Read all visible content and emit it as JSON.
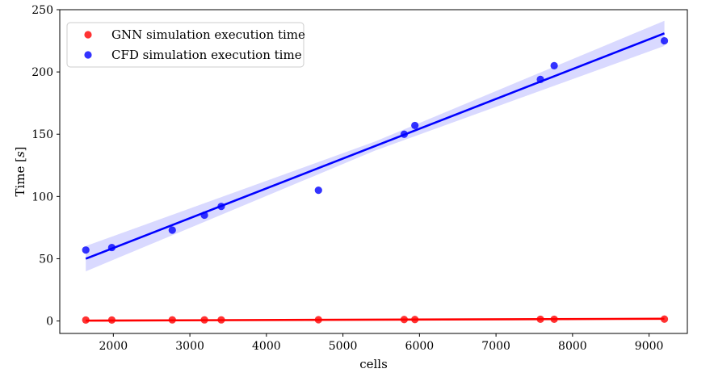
{
  "chart_data": {
    "type": "scatter",
    "xlabel": "cells",
    "ylabel": "Time [s]",
    "xlim": [
      1300,
      9500
    ],
    "ylim": [
      -10,
      250
    ],
    "xticks": [
      2000,
      3000,
      4000,
      5000,
      6000,
      7000,
      8000,
      9000
    ],
    "yticks": [
      0,
      50,
      100,
      150,
      200,
      250
    ],
    "grid": false,
    "legend_position": "top-left",
    "series": [
      {
        "name": "GNN simulation execution time",
        "color": "#ff0000",
        "x": [
          1640,
          1980,
          2770,
          3190,
          3410,
          4680,
          5800,
          5940,
          7580,
          7760,
          9200
        ],
        "y": [
          0.8,
          0.8,
          0.9,
          0.9,
          0.9,
          1.0,
          1.2,
          1.2,
          1.4,
          1.4,
          1.5
        ],
        "fit": {
          "x": [
            1640,
            9200
          ],
          "y": [
            0.3,
            1.8
          ]
        }
      },
      {
        "name": "CFD simulation execution time",
        "color": "#0000ff",
        "x": [
          1640,
          1980,
          2770,
          3190,
          3410,
          4680,
          5800,
          5940,
          7580,
          7760,
          9200
        ],
        "y": [
          57,
          59,
          73,
          85,
          92,
          105,
          150,
          157,
          194,
          205,
          225
        ],
        "fit": {
          "x": [
            1640,
            9200
          ],
          "y": [
            50,
            231
          ]
        }
      }
    ]
  }
}
